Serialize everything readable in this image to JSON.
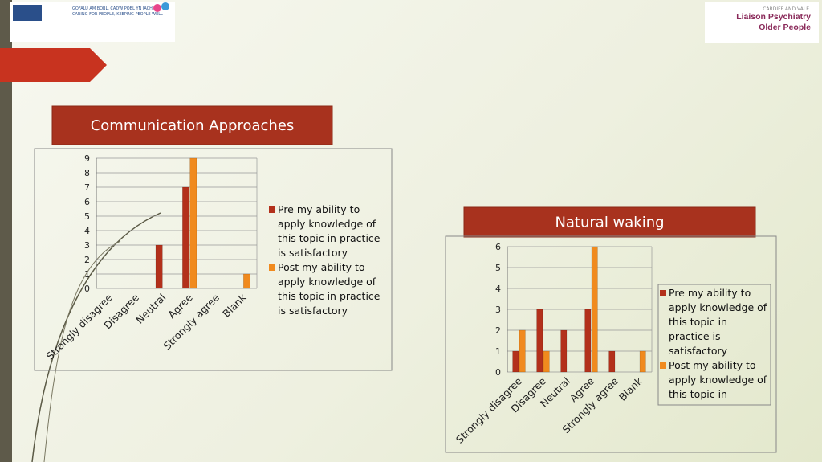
{
  "header": {
    "motto_welsh": "GOFALU AM BOBL, CADW POBL YN IACH",
    "motto_english": "CARING FOR PEOPLE, KEEPING PEOPLE WELL",
    "org": "CARDIFF AND VALE",
    "service": "Liaison Psychiatry Older People"
  },
  "chart_data": [
    {
      "type": "bar",
      "title": "Communication Approaches",
      "categories": [
        "Strongly disagree",
        "Disagree",
        "Neutral",
        "Agree",
        "Strongly agree",
        "Blank"
      ],
      "series": [
        {
          "name": "Pre my ability to apply knowledge of this topic in practice is satisfactory",
          "color": "#b3301b",
          "values": [
            0,
            0,
            3,
            7,
            0,
            0
          ]
        },
        {
          "name": "Post my ability to apply knowledge of this topic in practice is satisfactory",
          "color": "#f08a1e",
          "values": [
            0,
            0,
            0,
            9,
            0,
            1
          ]
        }
      ],
      "ylim": [
        0,
        9
      ],
      "yticks": [
        0,
        1,
        2,
        3,
        4,
        5,
        6,
        7,
        8,
        9
      ],
      "grid": true
    },
    {
      "type": "bar",
      "title": "Natural waking",
      "categories": [
        "Strongly disagree",
        "Disagree",
        "Neutral",
        "Agree",
        "Strongly agree",
        "Blank"
      ],
      "series": [
        {
          "name": "Pre my ability to apply knowledge of this topic in practice is satisfactory",
          "color": "#b3301b",
          "values": [
            1,
            3,
            2,
            3,
            1,
            0
          ]
        },
        {
          "name": "Post my ability to apply knowledge of this topic in practice is satisfactory",
          "color": "#f08a1e",
          "values": [
            2,
            1,
            0,
            6,
            0,
            1
          ]
        }
      ],
      "ylim": [
        0,
        6
      ],
      "yticks": [
        0,
        1,
        2,
        3,
        4,
        5,
        6
      ],
      "grid": true
    }
  ]
}
